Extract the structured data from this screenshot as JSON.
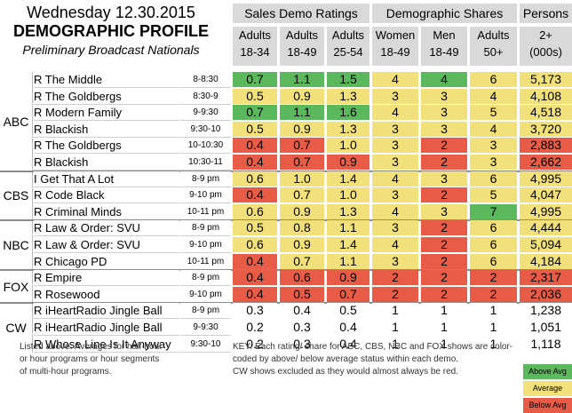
{
  "header": {
    "date": "Wednesday 12.30.2015",
    "title": "DEMOGRAPHIC PROFILE",
    "subtitle": "Preliminary Broadcast Nationals"
  },
  "groups": [
    {
      "label": "Sales Demo Ratings"
    },
    {
      "label": "Demographic Shares"
    },
    {
      "label": "Persons"
    }
  ],
  "columns": [
    {
      "l1": "Adults",
      "l2": "18-34"
    },
    {
      "l1": "Adults",
      "l2": "18-49"
    },
    {
      "l1": "Adults",
      "l2": "25-54"
    },
    {
      "l1": "Women",
      "l2": "18-49"
    },
    {
      "l1": "Men",
      "l2": "18-49"
    },
    {
      "l1": "Adults",
      "l2": "50+"
    },
    {
      "l1": "2+",
      "l2": "(000s)"
    }
  ],
  "colors": {
    "above": "#5cb85c",
    "average": "#f2e07a",
    "below": "#e85b47",
    "none": "#ffffff"
  },
  "networks": [
    {
      "name": "ABC",
      "count": 6
    },
    {
      "name": "CBS",
      "count": 3
    },
    {
      "name": "NBC",
      "count": 3
    },
    {
      "name": "FOX",
      "count": 2
    },
    {
      "name": "CW",
      "count": 3
    }
  ],
  "rows": [
    {
      "title": "R The Middle",
      "time": "8-8:30",
      "v": [
        "0.7",
        "1.1",
        "1.5",
        "4",
        "4",
        "6",
        "5,173"
      ],
      "c": [
        "above",
        "above",
        "above",
        "average",
        "above",
        "average",
        "average"
      ]
    },
    {
      "title": "R The Goldbergs",
      "time": "8:30-9",
      "v": [
        "0.5",
        "0.9",
        "1.3",
        "3",
        "3",
        "4",
        "4,108"
      ],
      "c": [
        "average",
        "average",
        "average",
        "average",
        "average",
        "average",
        "average"
      ]
    },
    {
      "title": "R Modern Family",
      "time": "9-9:30",
      "v": [
        "0.7",
        "1.1",
        "1.6",
        "4",
        "3",
        "5",
        "4,518"
      ],
      "c": [
        "above",
        "above",
        "above",
        "average",
        "average",
        "average",
        "average"
      ]
    },
    {
      "title": "R Blackish",
      "time": "9:30-10",
      "v": [
        "0.5",
        "0.9",
        "1.3",
        "3",
        "3",
        "4",
        "3,720"
      ],
      "c": [
        "average",
        "average",
        "average",
        "average",
        "average",
        "average",
        "average"
      ]
    },
    {
      "title": "R The Goldbergs",
      "time": "10-10:30",
      "v": [
        "0.4",
        "0.7",
        "1.0",
        "3",
        "2",
        "3",
        "2,883"
      ],
      "c": [
        "below",
        "below",
        "average",
        "average",
        "below",
        "average",
        "below"
      ]
    },
    {
      "title": "R Blackish",
      "time": "10:30-11",
      "v": [
        "0.4",
        "0.7",
        "0.9",
        "3",
        "2",
        "3",
        "2,662"
      ],
      "c": [
        "below",
        "below",
        "below",
        "average",
        "below",
        "average",
        "below"
      ]
    },
    {
      "title": "I Get That A Lot",
      "time": "8-9 pm",
      "v": [
        "0.6",
        "1.0",
        "1.4",
        "4",
        "3",
        "6",
        "4,995"
      ],
      "c": [
        "average",
        "average",
        "average",
        "average",
        "average",
        "average",
        "average"
      ]
    },
    {
      "title": "R Code Black",
      "time": "9-10 pm",
      "v": [
        "0.4",
        "0.7",
        "1.0",
        "3",
        "2",
        "5",
        "4,047"
      ],
      "c": [
        "below",
        "average",
        "average",
        "average",
        "below",
        "average",
        "average"
      ]
    },
    {
      "title": "R Criminal Minds",
      "time": "10-11 pm",
      "v": [
        "0.6",
        "0.9",
        "1.3",
        "4",
        "3",
        "7",
        "4,995"
      ],
      "c": [
        "average",
        "average",
        "average",
        "average",
        "average",
        "above",
        "average"
      ]
    },
    {
      "title": "R Law & Order: SVU",
      "time": "8-9 pm",
      "v": [
        "0.5",
        "0.8",
        "1.1",
        "3",
        "2",
        "6",
        "4,444"
      ],
      "c": [
        "average",
        "average",
        "average",
        "average",
        "below",
        "average",
        "average"
      ]
    },
    {
      "title": "R Law & Order: SVU",
      "time": "9-10 pm",
      "v": [
        "0.6",
        "0.9",
        "1.4",
        "4",
        "2",
        "6",
        "5,094"
      ],
      "c": [
        "average",
        "average",
        "average",
        "average",
        "below",
        "average",
        "average"
      ]
    },
    {
      "title": "R Chicago PD",
      "time": "10-11 pm",
      "v": [
        "0.4",
        "0.7",
        "1.1",
        "3",
        "2",
        "6",
        "4,184"
      ],
      "c": [
        "below",
        "average",
        "average",
        "average",
        "below",
        "average",
        "average"
      ]
    },
    {
      "title": "R Empire",
      "time": "8-9 pm",
      "v": [
        "0.4",
        "0.6",
        "0.9",
        "2",
        "2",
        "2",
        "2,317"
      ],
      "c": [
        "below",
        "below",
        "below",
        "below",
        "below",
        "below",
        "below"
      ]
    },
    {
      "title": "R Rosewood",
      "time": "9-10 pm",
      "v": [
        "0.4",
        "0.5",
        "0.7",
        "2",
        "2",
        "2",
        "2,036"
      ],
      "c": [
        "below",
        "below",
        "below",
        "below",
        "below",
        "below",
        "below"
      ]
    },
    {
      "title": "R iHeartRadio Jingle Ball",
      "time": "8-9 pm",
      "v": [
        "0.3",
        "0.4",
        "0.5",
        "1",
        "1",
        "1",
        "1,238"
      ],
      "c": [
        "none",
        "none",
        "none",
        "none",
        "none",
        "none",
        "none"
      ]
    },
    {
      "title": "R iHeartRadio Jingle Ball",
      "time": "9-9:30",
      "v": [
        "0.2",
        "0.3",
        "0.4",
        "1",
        "1",
        "1",
        "1,051"
      ],
      "c": [
        "none",
        "none",
        "none",
        "none",
        "none",
        "none",
        "none"
      ]
    },
    {
      "title": "R Whose Line Is It Anyway",
      "time": "9:30-10",
      "v": [
        "0.2",
        "0.3",
        "0.4",
        "1",
        "1",
        "1",
        "1,118"
      ],
      "c": [
        "none",
        "none",
        "none",
        "none",
        "none",
        "none",
        "none"
      ]
    }
  ],
  "notes": {
    "left": [
      "Listed above: Averages for half-hour",
      "or hour programs or hour segments",
      "of multi-hour programs."
    ],
    "right": [
      "KEY: Each rating/ share for ABC, CBS, NBC and FOX shows are color-",
      "coded by above/ below average status within each demo.",
      "CW shows excluded as they would almost always be red."
    ]
  },
  "legend": [
    {
      "label": "Above Avg",
      "color": "above"
    },
    {
      "label": "Average",
      "color": "average"
    },
    {
      "label": "Below Avg",
      "color": "below"
    }
  ]
}
